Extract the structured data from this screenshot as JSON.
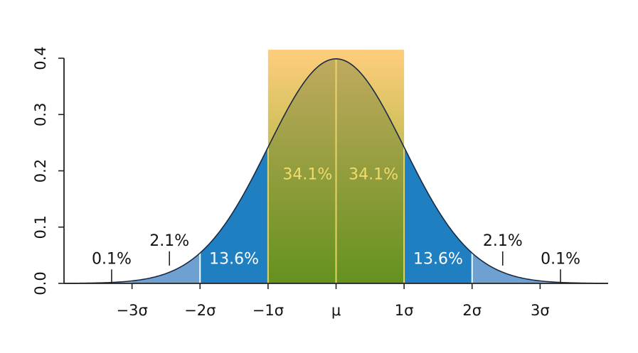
{
  "chart_data": {
    "type": "area",
    "title": "",
    "xlabel": "",
    "ylabel": "",
    "xlim": [
      -4,
      4
    ],
    "ylim": [
      0,
      0.4
    ],
    "x_ticks": [
      {
        "x": -3,
        "label": "−3σ"
      },
      {
        "x": -2,
        "label": "−2σ"
      },
      {
        "x": -1,
        "label": "−1σ"
      },
      {
        "x": 0,
        "label": "μ"
      },
      {
        "x": 1,
        "label": "1σ"
      },
      {
        "x": 2,
        "label": "2σ"
      },
      {
        "x": 3,
        "label": "3σ"
      }
    ],
    "y_ticks": [
      {
        "y": 0.0,
        "label": "0.0"
      },
      {
        "y": 0.1,
        "label": "0.1"
      },
      {
        "y": 0.2,
        "label": "0.2"
      },
      {
        "y": 0.3,
        "label": "0.3"
      },
      {
        "y": 0.4,
        "label": "0.4"
      }
    ],
    "curve": {
      "mean": 0,
      "sd": 1,
      "peak": 0.399
    },
    "regions": [
      {
        "from": -4,
        "to": -3,
        "color": "#8db4dc"
      },
      {
        "from": -3,
        "to": -2,
        "color": "#6ea0d2"
      },
      {
        "from": -2,
        "to": -1,
        "color": "#1f7fc1"
      },
      {
        "from": -1,
        "to": 1,
        "color": "#1f7fc1"
      },
      {
        "from": 1,
        "to": 2,
        "color": "#1f7fc1"
      },
      {
        "from": 2,
        "to": 3,
        "color": "#6ea0d2"
      },
      {
        "from": 3,
        "to": 4,
        "color": "#8db4dc"
      }
    ],
    "highlight_band": {
      "from": -1,
      "to": 1,
      "top_color": "#ffcc7a",
      "bottom_color": "#78a81a",
      "text_color": "#f0dc6a"
    },
    "annotations": [
      {
        "text": "0.1%",
        "x": -3.3,
        "y": 0.035,
        "tick": true,
        "color": "#111111"
      },
      {
        "text": "2.1%",
        "x": -2.45,
        "y": 0.067,
        "tick": true,
        "color": "#111111"
      },
      {
        "text": "13.6%",
        "x": -1.5,
        "y": 0.035,
        "tick": false,
        "color": "#ffffff"
      },
      {
        "text": "34.1%",
        "x": -0.42,
        "y": 0.185,
        "tick": false,
        "color": "#f0dc6a"
      },
      {
        "text": "34.1%",
        "x": 0.55,
        "y": 0.185,
        "tick": false,
        "color": "#f0dc6a"
      },
      {
        "text": "13.6%",
        "x": 1.5,
        "y": 0.035,
        "tick": false,
        "color": "#ffffff"
      },
      {
        "text": "2.1%",
        "x": 2.45,
        "y": 0.067,
        "tick": true,
        "color": "#111111"
      },
      {
        "text": "0.1%",
        "x": 3.3,
        "y": 0.035,
        "tick": true,
        "color": "#111111"
      }
    ],
    "curve_color": "#1a2a44",
    "grid": false,
    "legend": "none"
  }
}
